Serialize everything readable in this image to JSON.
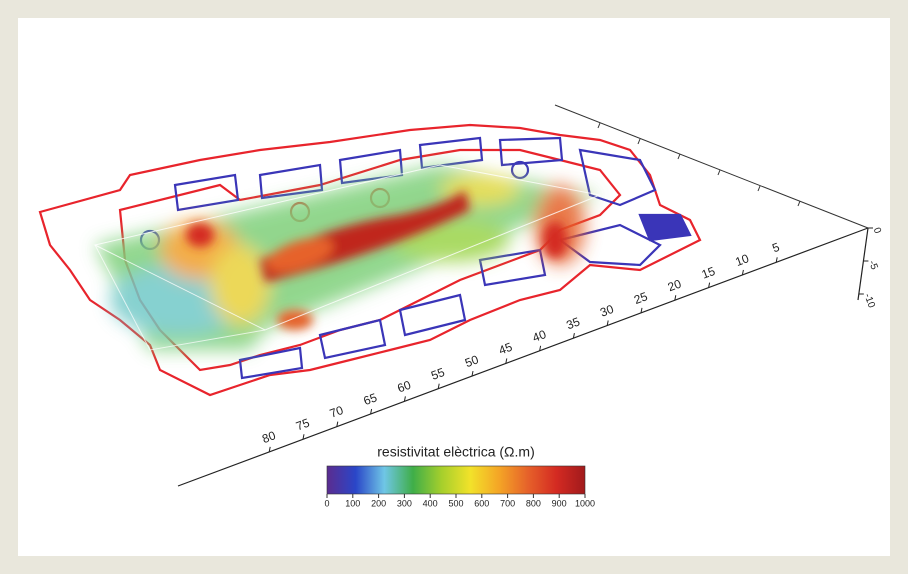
{
  "colorbar": {
    "title": "resistivitat elèctrica (Ω.m)",
    "ticks": [
      0,
      100,
      200,
      300,
      400,
      500,
      600,
      700,
      800,
      900,
      1000
    ],
    "colors": [
      "#5b2c8f",
      "#2a46c8",
      "#6fc6e6",
      "#3fae48",
      "#a6cf2c",
      "#f2e22a",
      "#f4a526",
      "#e6622a",
      "#d42a22",
      "#a11a1c"
    ]
  },
  "length_axis": {
    "ticks": [
      80,
      75,
      70,
      65,
      60,
      55,
      50,
      45,
      40,
      35,
      30,
      25,
      20,
      15,
      10,
      5
    ]
  },
  "depth_axis": {
    "ticks": [
      0,
      -5,
      -10
    ]
  }
}
